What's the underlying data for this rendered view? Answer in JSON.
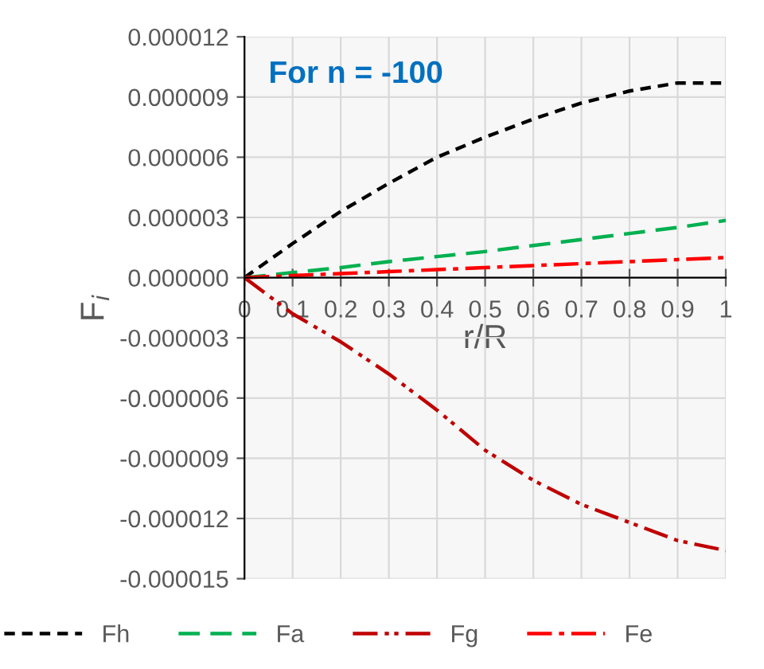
{
  "chart_data": {
    "type": "line",
    "xlabel": "r/R",
    "ylabel": "F$_{i}$",
    "annotations": [
      "For n = -100"
    ],
    "x": [
      0,
      0.1,
      0.2,
      0.3,
      0.4,
      0.5,
      0.6,
      0.7,
      0.8,
      0.9,
      1
    ],
    "series": [
      {
        "name": "Fh",
        "color": "#000000",
        "line_style": "dashed",
        "values": [
          0,
          1.7e-06,
          3.3e-06,
          4.7e-06,
          6e-06,
          7e-06,
          7.9e-06,
          8.7e-06,
          9.3e-06,
          9.7e-06,
          9.7e-06
        ]
      },
      {
        "name": "Fa",
        "color": "#00b050",
        "line_style": "long dashed",
        "values": [
          0,
          2.5e-07,
          5e-07,
          8e-07,
          1.05e-06,
          1.3e-06,
          1.6e-06,
          1.9e-06,
          2.2e-06,
          2.5e-06,
          2.85e-06
        ]
      },
      {
        "name": "Fg",
        "color": "#c00000",
        "line_style": "dash dot dot",
        "values": [
          0,
          -1.8e-06,
          -3.2e-06,
          -4.8e-06,
          -6.6e-06,
          -8.6e-06,
          -1.01e-05,
          -1.13e-05,
          -1.22e-05,
          -1.31e-05,
          -1.36e-05
        ]
      },
      {
        "name": "Fe",
        "color": "#ff0000",
        "line_style": "dash dot",
        "values": [
          0,
          1e-07,
          2e-07,
          3e-07,
          4e-07,
          5e-07,
          6e-07,
          7e-07,
          8e-07,
          9e-07,
          1e-06
        ]
      }
    ],
    "xlim": [
      0,
      1
    ],
    "xticks": [
      0,
      0.1,
      0.2,
      0.3,
      0.4,
      0.5,
      0.6,
      0.7,
      0.8,
      0.9,
      1
    ],
    "ylim": [
      -1.5e-05,
      1.2e-05
    ],
    "yticks": [
      {
        "value": 1.2e-05,
        "label": "0.000012"
      },
      {
        "value": 9e-06,
        "label": "0.000009"
      },
      {
        "value": 6e-06,
        "label": "0.000006"
      },
      {
        "value": 3e-06,
        "label": "0.000003"
      },
      {
        "value": 0,
        "label": "0.000000"
      },
      {
        "value": -3e-06,
        "label": "-0.000003"
      },
      {
        "value": -6e-06,
        "label": "-0.000006"
      },
      {
        "value": -9e-06,
        "label": "-0.000009"
      },
      {
        "value": -1.2e-05,
        "label": "-0.000012"
      },
      {
        "value": -1.5e-05,
        "label": "-0.000015"
      }
    ],
    "grid": true,
    "legend": "bottom",
    "marker": "none"
  }
}
